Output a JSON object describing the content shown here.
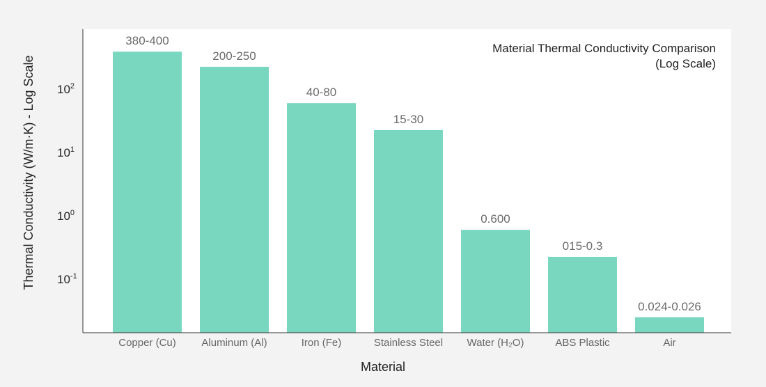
{
  "chart_data": {
    "type": "bar",
    "title": "Material Thermal Conductivity Comparison",
    "subtitle": "(Log Scale)",
    "xlabel": "Material",
    "ylabel": "Thermal Conductivity (W/m·K) - Log Scale",
    "yscale": "log",
    "ylim": [
      0.015,
      1000
    ],
    "grid": false,
    "legend": "none",
    "color": "#79d7c0",
    "yticks": [
      {
        "value": 100,
        "base": "10",
        "exp": "2"
      },
      {
        "value": 10,
        "base": "10",
        "exp": "1"
      },
      {
        "value": 1,
        "base": "10",
        "exp": "0"
      },
      {
        "value": 0.1,
        "base": "10",
        "exp": "-1"
      }
    ],
    "categories": [
      "Copper (Cu)",
      "Aluminum (Al)",
      "Iron (Fe)",
      "Stainless Steel",
      "Water (H₂O)",
      "ABS Plastic",
      "Air"
    ],
    "values": [
      390,
      225,
      60,
      22.5,
      0.6,
      0.225,
      0.025
    ],
    "value_labels": [
      "380-400",
      "200-250",
      "40-80",
      "15-30",
      "0.600",
      "015-0.3",
      "0.024-0.026"
    ]
  }
}
